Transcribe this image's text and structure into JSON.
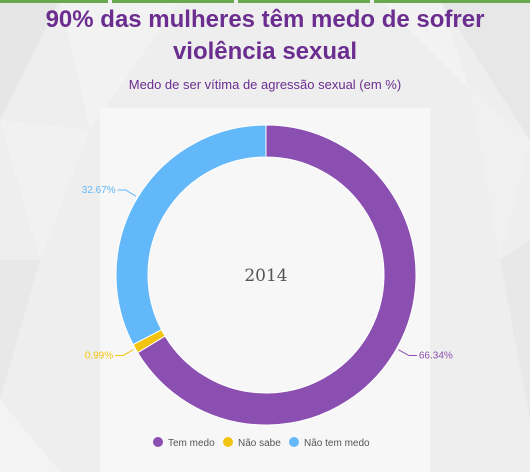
{
  "header": {
    "title_line1": "90% das mulheres têm medo de sofrer",
    "title_line2": "violência sexual",
    "subtitle": "Medo de ser vítima de agressão sexual (em %)"
  },
  "colors": {
    "title": "#6b2d8f",
    "tem_medo": "#8a4fb0",
    "nao_sabe": "#f2c40f",
    "nao_tem_medo": "#63b8fa",
    "top_bar": "#6aa84f"
  },
  "chart_data": {
    "type": "pie",
    "variant": "donut",
    "title": "Medo de ser vítima de agressão sexual (em %)",
    "center_label": "2014",
    "series": [
      {
        "name": "Tem medo",
        "value": 66.34,
        "label": "66.34%",
        "color": "#8a4fb0"
      },
      {
        "name": "Não sabe",
        "value": 0.99,
        "label": "0.99%",
        "color": "#f2c40f"
      },
      {
        "name": "Não tem medo",
        "value": 32.67,
        "label": "32.67%",
        "color": "#63b8fa"
      }
    ],
    "legend_position": "bottom"
  }
}
